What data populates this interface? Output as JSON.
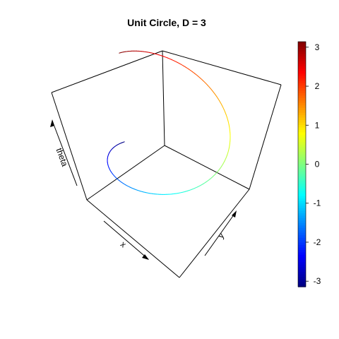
{
  "chart_data": {
    "type": "line3d",
    "title": "Unit Circle, D = 3",
    "axes": {
      "x": "x",
      "y": "y",
      "z": "theta"
    },
    "curve": {
      "description_shown": "unit circle embedded in 3D, colored by theta",
      "theta_range": [
        -3.14159,
        3.14159
      ],
      "x": "cos(theta)",
      "y": "sin(theta)",
      "z": "theta"
    },
    "colorbar": {
      "ticks": [
        3,
        2,
        1,
        0,
        -1,
        -2,
        -3
      ],
      "range": [
        -3.14159,
        3.14159
      ],
      "palette": "jet"
    }
  }
}
